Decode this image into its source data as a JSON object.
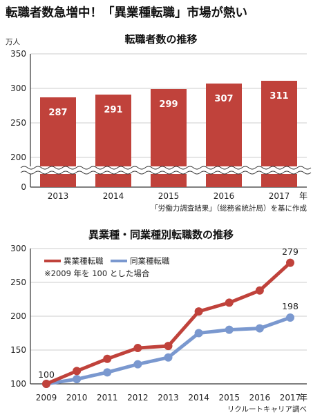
{
  "headline": "転職者数急増中！「異業種転職」市場が熱い",
  "colors": {
    "red": "#c0423b",
    "blue": "#7a98cf",
    "axis": "#333333",
    "grid": "#bdbdbd"
  },
  "chart_data": [
    {
      "type": "bar",
      "title": "転職者数の推移",
      "unit_label": "万人",
      "categories": [
        "2013",
        "2014",
        "2015",
        "2016",
        "2017"
      ],
      "x_suffix": "年",
      "values": [
        287,
        291,
        299,
        307,
        311
      ],
      "y_ticks": [
        0,
        200,
        250,
        300,
        350
      ],
      "axis_break": [
        0,
        200
      ],
      "ylim": [
        0,
        350
      ],
      "source": "「労働力調査結果」（総務省統計局）を基に作成"
    },
    {
      "type": "line",
      "title": "異業種・同業種別転職数の推移",
      "x": [
        "2009",
        "2010",
        "2011",
        "2012",
        "2013",
        "2014",
        "2015",
        "2016",
        "2017"
      ],
      "x_suffix": "年",
      "series": [
        {
          "name": "異業種転職",
          "values": [
            100,
            119,
            137,
            153,
            156,
            207,
            220,
            238,
            279
          ]
        },
        {
          "name": "同業種転職",
          "values": [
            100,
            107,
            117,
            129,
            139,
            175,
            180,
            182,
            198
          ]
        }
      ],
      "start_label": "100",
      "end_labels": [
        "279",
        "198"
      ],
      "note": "※2009 年を 100 とした場合",
      "y_ticks": [
        100,
        150,
        200,
        250,
        300
      ],
      "ylim": [
        100,
        300
      ],
      "legend": "top-left",
      "source": "リクルートキャリア調べ"
    }
  ]
}
